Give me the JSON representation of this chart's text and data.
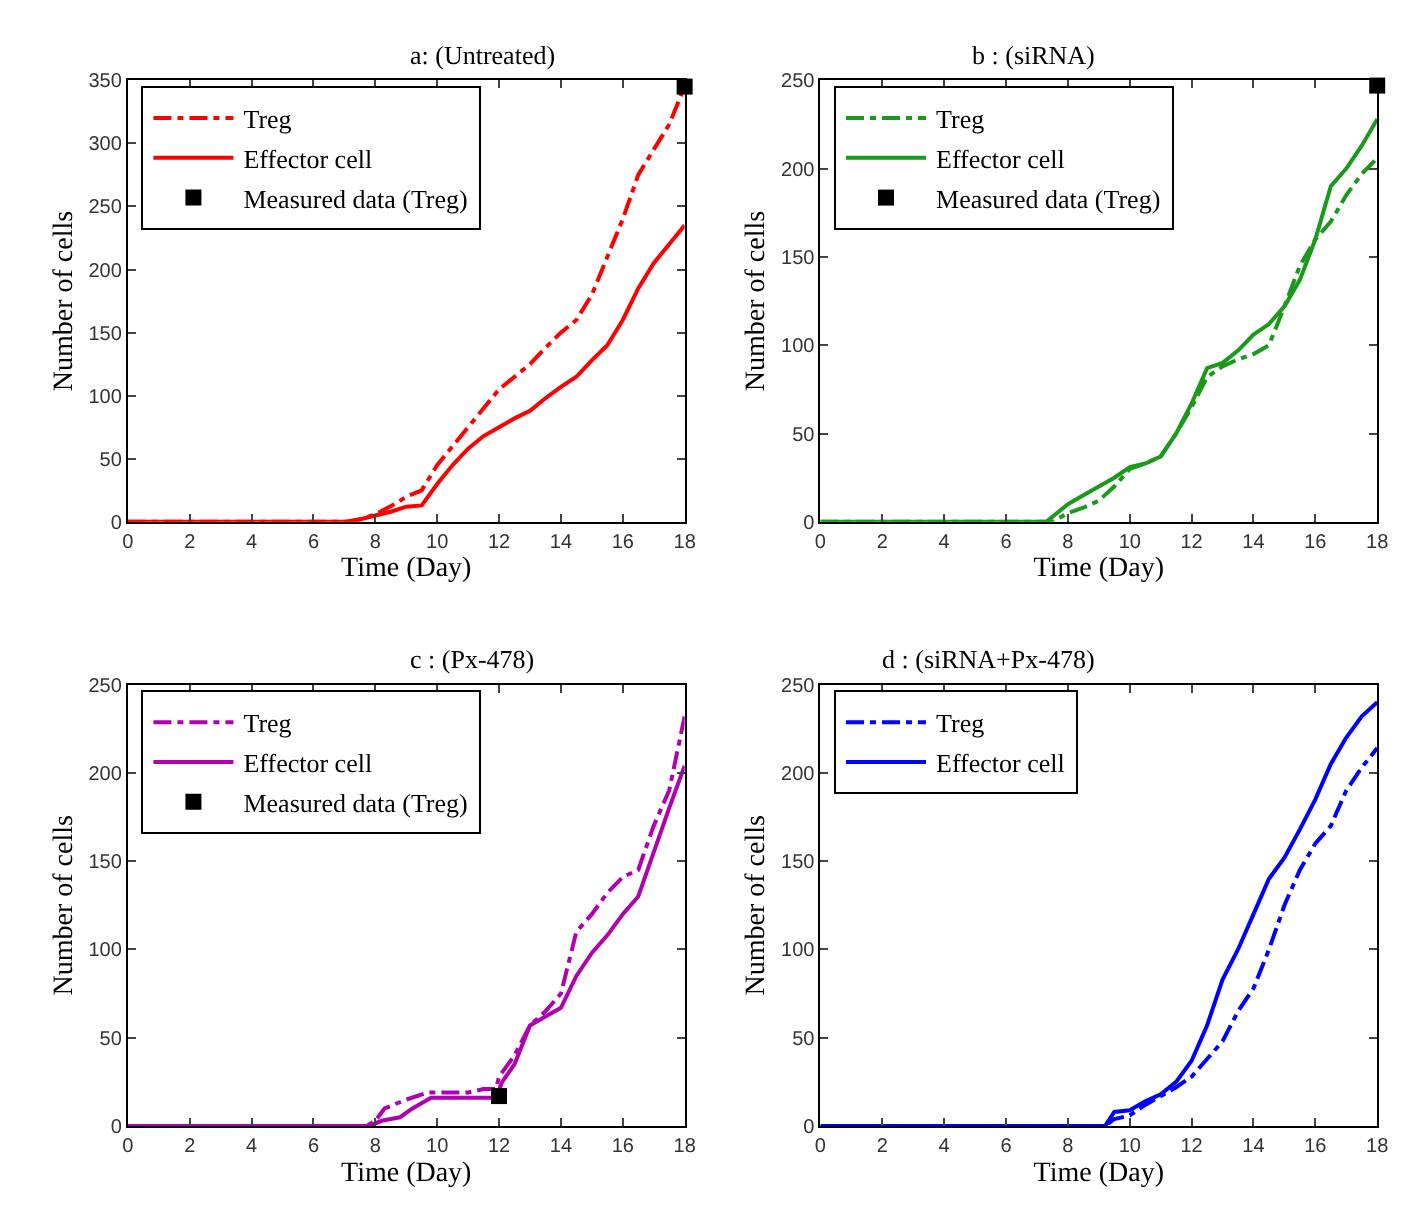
{
  "chart_data": [
    {
      "type": "line",
      "title": "a: (Untreated)",
      "xlabel": "Time (Day)",
      "ylabel": "Number of cells",
      "xlim": [
        0,
        18
      ],
      "xticks": [
        0,
        2,
        4,
        6,
        8,
        10,
        12,
        14,
        16,
        18
      ],
      "ylim": [
        0,
        350
      ],
      "yticks": [
        0,
        50,
        100,
        150,
        200,
        250,
        300,
        350
      ],
      "legend": "top left",
      "series": [
        {
          "name": "Treg",
          "color": "#ff0000",
          "line_style": "dashed",
          "x": [
            0,
            7,
            7.5,
            8,
            8.7,
            9,
            9.5,
            10,
            10.5,
            11,
            11.5,
            12,
            12.5,
            13,
            13.5,
            14,
            14.5,
            15,
            15.5,
            16,
            16.5,
            17,
            17.5,
            18
          ],
          "values": [
            0,
            0,
            2,
            6,
            15,
            20,
            25,
            45,
            60,
            75,
            90,
            105,
            115,
            125,
            138,
            150,
            160,
            180,
            210,
            240,
            275,
            295,
            315,
            345
          ]
        },
        {
          "name": "Effector cell",
          "color": "#ff0000",
          "line_style": "solid",
          "x": [
            0,
            7.2,
            8,
            8.5,
            9,
            9.5,
            10,
            10.5,
            11,
            11.5,
            12,
            12.5,
            13,
            13.5,
            14,
            14.5,
            15,
            15.5,
            16,
            16.5,
            17,
            17.5,
            18
          ],
          "values": [
            0,
            0,
            5,
            8,
            12,
            13,
            30,
            45,
            58,
            68,
            75,
            82,
            88,
            98,
            107,
            115,
            128,
            140,
            160,
            185,
            205,
            220,
            235
          ]
        },
        {
          "name": "Measured data (Treg)",
          "type": "scatter",
          "marker": "square",
          "color": "#000000",
          "x": [
            18
          ],
          "values": [
            345
          ]
        }
      ]
    },
    {
      "type": "line",
      "title": "b : (siRNA)",
      "xlabel": "Time (Day)",
      "ylabel": "Number of cells",
      "xlim": [
        0,
        18
      ],
      "xticks": [
        0,
        2,
        4,
        6,
        8,
        10,
        12,
        14,
        16,
        18
      ],
      "ylim": [
        0,
        250
      ],
      "yticks": [
        0,
        50,
        100,
        150,
        200,
        250
      ],
      "legend": "top left",
      "series": [
        {
          "name": "Treg",
          "color": "#1a9a1a",
          "line_style": "dashed",
          "x": [
            0,
            7.5,
            8,
            8.5,
            9,
            9.5,
            10,
            10.5,
            11,
            11.5,
            12,
            12.5,
            13,
            13.5,
            14,
            14.5,
            15,
            15.5,
            16,
            16.5,
            17,
            17.5,
            18
          ],
          "values": [
            0,
            0,
            5,
            8,
            12,
            20,
            30,
            33,
            37,
            50,
            65,
            82,
            88,
            92,
            95,
            100,
            122,
            145,
            160,
            170,
            185,
            197,
            206
          ]
        },
        {
          "name": "Effector cell",
          "color": "#1a9a1a",
          "line_style": "solid",
          "x": [
            0,
            7.3,
            8,
            8.5,
            9,
            9.5,
            10,
            10.5,
            11,
            11.5,
            12,
            12.5,
            13,
            13.5,
            14,
            14.5,
            15,
            15.5,
            16,
            16.5,
            17,
            17.5,
            18
          ],
          "values": [
            0,
            0,
            10,
            15,
            20,
            25,
            31,
            33,
            37,
            50,
            67,
            87,
            90,
            97,
            106,
            112,
            122,
            137,
            160,
            190,
            200,
            213,
            228
          ]
        },
        {
          "name": "Measured data (Treg)",
          "type": "scatter",
          "marker": "square",
          "color": "#000000",
          "x": [
            18
          ],
          "values": [
            247
          ]
        }
      ]
    },
    {
      "type": "line",
      "title": "c : (Px-478)",
      "xlabel": "Time (Day)",
      "ylabel": "Number of cells",
      "xlim": [
        0,
        18
      ],
      "xticks": [
        0,
        2,
        4,
        6,
        8,
        10,
        12,
        14,
        16,
        18
      ],
      "ylim": [
        0,
        250
      ],
      "yticks": [
        0,
        50,
        100,
        150,
        200,
        250
      ],
      "legend": "top left",
      "series": [
        {
          "name": "Treg",
          "color": "#b000b0",
          "line_style": "dashed",
          "x": [
            0,
            7.7,
            8,
            8.3,
            9,
            9.7,
            10,
            11,
            11.5,
            11.9,
            12,
            12.5,
            13,
            13.5,
            14,
            14.5,
            15,
            15.5,
            16,
            16.5,
            17,
            17.5,
            18
          ],
          "values": [
            0,
            0,
            3,
            10,
            15,
            19,
            19,
            19,
            21,
            21,
            28,
            40,
            57,
            65,
            75,
            110,
            120,
            132,
            141,
            145,
            170,
            190,
            232
          ]
        },
        {
          "name": "Effector cell",
          "color": "#b000b0",
          "line_style": "solid",
          "x": [
            0,
            7.8,
            8.2,
            8.8,
            9.2,
            9.8,
            11.9,
            12.1,
            12.5,
            13,
            13.5,
            14,
            14.5,
            15,
            15.5,
            16,
            16.5,
            17,
            17.5,
            18
          ],
          "values": [
            0,
            0,
            3,
            5,
            10,
            16,
            16,
            25,
            35,
            57,
            62,
            67,
            85,
            98,
            108,
            120,
            130,
            155,
            180,
            204
          ]
        },
        {
          "name": "Measured data (Treg)",
          "type": "scatter",
          "marker": "square",
          "color": "#000000",
          "x": [
            12
          ],
          "values": [
            17
          ]
        }
      ]
    },
    {
      "type": "line",
      "title": "d : (siRNA+Px-478)",
      "xlabel": "Time (Day)",
      "ylabel": "Number of cells",
      "xlim": [
        0,
        18
      ],
      "xticks": [
        0,
        2,
        4,
        6,
        8,
        10,
        12,
        14,
        16,
        18
      ],
      "ylim": [
        0,
        250
      ],
      "yticks": [
        0,
        50,
        100,
        150,
        200,
        250
      ],
      "legend": "top left",
      "series": [
        {
          "name": "Treg",
          "color": "#0000ff",
          "line_style": "dashed",
          "x": [
            0,
            9.2,
            9.5,
            10,
            10.5,
            11,
            11.5,
            12,
            12.5,
            13,
            13.5,
            14,
            14.5,
            15,
            15.5,
            16,
            16.5,
            17,
            17.5,
            18
          ],
          "values": [
            0,
            0,
            4,
            6,
            12,
            17,
            22,
            28,
            38,
            48,
            65,
            78,
            100,
            125,
            145,
            160,
            170,
            190,
            203,
            214
          ]
        },
        {
          "name": "Effector cell",
          "color": "#0000ff",
          "line_style": "solid",
          "x": [
            0,
            9.2,
            9.5,
            10,
            10.5,
            11,
            11.5,
            12,
            12.5,
            13,
            13.5,
            14,
            14.5,
            15,
            15.5,
            16,
            16.5,
            17,
            17.5,
            18
          ],
          "values": [
            0,
            0,
            8,
            9,
            14,
            18,
            25,
            37,
            57,
            83,
            100,
            120,
            140,
            152,
            168,
            185,
            205,
            220,
            232,
            240
          ]
        }
      ]
    }
  ]
}
